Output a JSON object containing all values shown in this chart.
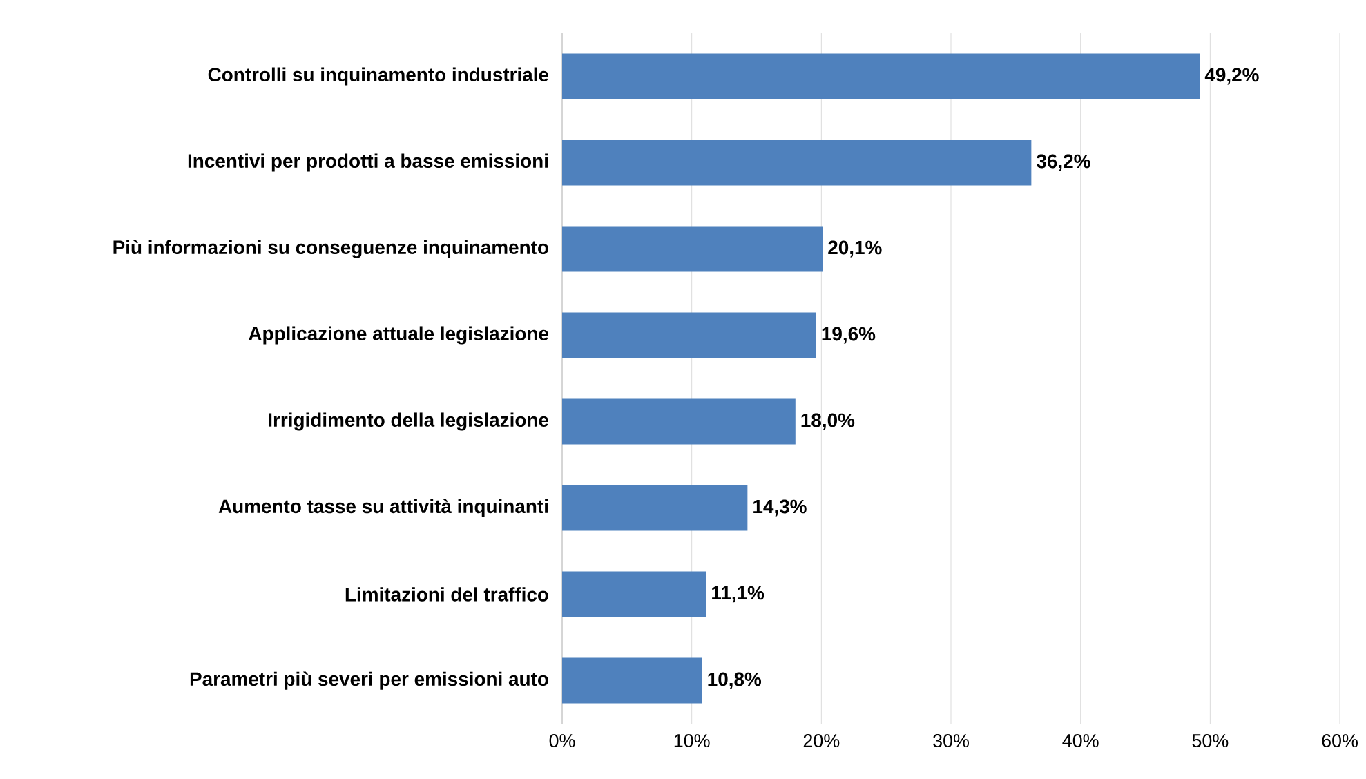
{
  "chart_data": {
    "type": "bar",
    "orientation": "horizontal",
    "categories": [
      "Controlli su inquinamento industriale",
      "Incentivi per prodotti a basse emissioni",
      "Più informazioni su conseguenze inquinamento",
      "Applicazione attuale legislazione",
      "Irrigidimento della legislazione",
      "Aumento tasse su attività  inquinanti",
      "Limitazioni del traffico",
      "Parametri più severi per emissioni auto"
    ],
    "values": [
      49.2,
      36.2,
      20.1,
      19.6,
      18.0,
      14.3,
      11.1,
      10.8
    ],
    "value_labels": [
      "49,2%",
      "36,2%",
      "20,1%",
      "19,6%",
      "18,0%",
      "14,3%",
      "11,1%",
      "10,8%"
    ],
    "color": "#4f81bd",
    "xlim": [
      0,
      60
    ],
    "xticks": [
      {
        "value": 0,
        "label": "0%"
      },
      {
        "value": 10,
        "label": "10%"
      },
      {
        "value": 20,
        "label": "20%"
      },
      {
        "value": 30,
        "label": "30%"
      },
      {
        "value": 40,
        "label": "40%"
      },
      {
        "value": 50,
        "label": "50%"
      },
      {
        "value": 60,
        "label": "60%"
      }
    ],
    "grid": "x"
  }
}
